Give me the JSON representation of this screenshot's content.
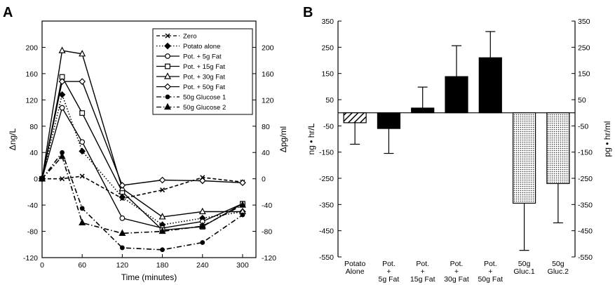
{
  "panels": {
    "a_letter": "A",
    "b_letter": "B"
  },
  "chart_data": [
    {
      "type": "line",
      "panel": "A",
      "xlabel": "Time (minutes)",
      "ylabel": "Δng/L",
      "ylabel_right": "Δpg/ml",
      "xlim": [
        0,
        320
      ],
      "ylim": [
        -120,
        240
      ],
      "xticks": [
        0,
        60,
        120,
        180,
        240,
        300
      ],
      "yticks": [
        -120,
        -80,
        -40,
        0,
        40,
        80,
        120,
        160,
        200
      ],
      "legend_position": "top-right",
      "series": [
        {
          "name": "Zero",
          "marker": "x",
          "dash": "dashed",
          "x": [
            0,
            30,
            60,
            120,
            180,
            240,
            300
          ],
          "y": [
            0,
            0,
            4,
            -30,
            -17,
            2,
            -5
          ]
        },
        {
          "name": "Potato alone",
          "marker": "diamond-filled",
          "dash": "dotted",
          "x": [
            0,
            30,
            60,
            120,
            180,
            240,
            300
          ],
          "y": [
            0,
            128,
            42,
            -28,
            -70,
            -60,
            -50
          ]
        },
        {
          "name": "Pot. + 5g Fat",
          "marker": "circle-open",
          "dash": "solid",
          "x": [
            0,
            30,
            60,
            120,
            180,
            240,
            300
          ],
          "y": [
            0,
            108,
            56,
            -60,
            -75,
            -65,
            -38
          ]
        },
        {
          "name": "Pot. + 15g Fat",
          "marker": "square-open",
          "dash": "solid",
          "x": [
            0,
            30,
            60,
            120,
            180,
            240,
            300
          ],
          "y": [
            0,
            155,
            100,
            -20,
            -78,
            -73,
            -38
          ]
        },
        {
          "name": "Pot. + 30g Fat",
          "marker": "triangle-open",
          "dash": "solid",
          "x": [
            0,
            30,
            60,
            120,
            180,
            240,
            300
          ],
          "y": [
            0,
            195,
            190,
            -15,
            -58,
            -50,
            -50
          ]
        },
        {
          "name": "Pot. + 50g Fat",
          "marker": "diamond-open",
          "dash": "solid",
          "x": [
            0,
            30,
            60,
            120,
            180,
            240,
            300
          ],
          "y": [
            0,
            148,
            148,
            -10,
            -2,
            -3,
            -6
          ]
        },
        {
          "name": "50g Glucose 1",
          "marker": "circle-filled",
          "dash": "dashdot",
          "x": [
            0,
            30,
            60,
            120,
            180,
            240,
            300
          ],
          "y": [
            0,
            40,
            -45,
            -105,
            -108,
            -97,
            -55
          ]
        },
        {
          "name": "50g Glucose 2",
          "marker": "triangle-filled",
          "dash": "dashdot",
          "x": [
            0,
            30,
            60,
            120,
            180,
            240,
            300
          ],
          "y": [
            0,
            34,
            -67,
            -83,
            -80,
            -72,
            -40
          ]
        }
      ]
    },
    {
      "type": "bar",
      "panel": "B",
      "ylabel": "ng • hr/L",
      "ylabel_right": "pg • hr/ml",
      "ylim": [
        -550,
        350
      ],
      "yticks": [
        350,
        250,
        150,
        50,
        -50,
        -150,
        -250,
        -350,
        -450,
        -550
      ],
      "categories": [
        [
          "Potato",
          "Alone"
        ],
        [
          "Pot.",
          "+",
          "5g Fat"
        ],
        [
          "Pot.",
          "+",
          "15g Fat"
        ],
        [
          "Pot.",
          "+",
          "30g Fat"
        ],
        [
          "Pot.",
          "+",
          "50g Fat"
        ],
        [
          "50g",
          "Gluc.1"
        ],
        [
          "50g",
          "Gluc.2"
        ]
      ],
      "values": [
        -38,
        -60,
        18,
        138,
        210,
        -345,
        -270
      ],
      "errors": [
        82,
        95,
        80,
        118,
        100,
        180,
        150
      ],
      "fills": [
        "hatched",
        "solid",
        "solid",
        "solid",
        "solid",
        "dotted",
        "dotted"
      ]
    }
  ]
}
